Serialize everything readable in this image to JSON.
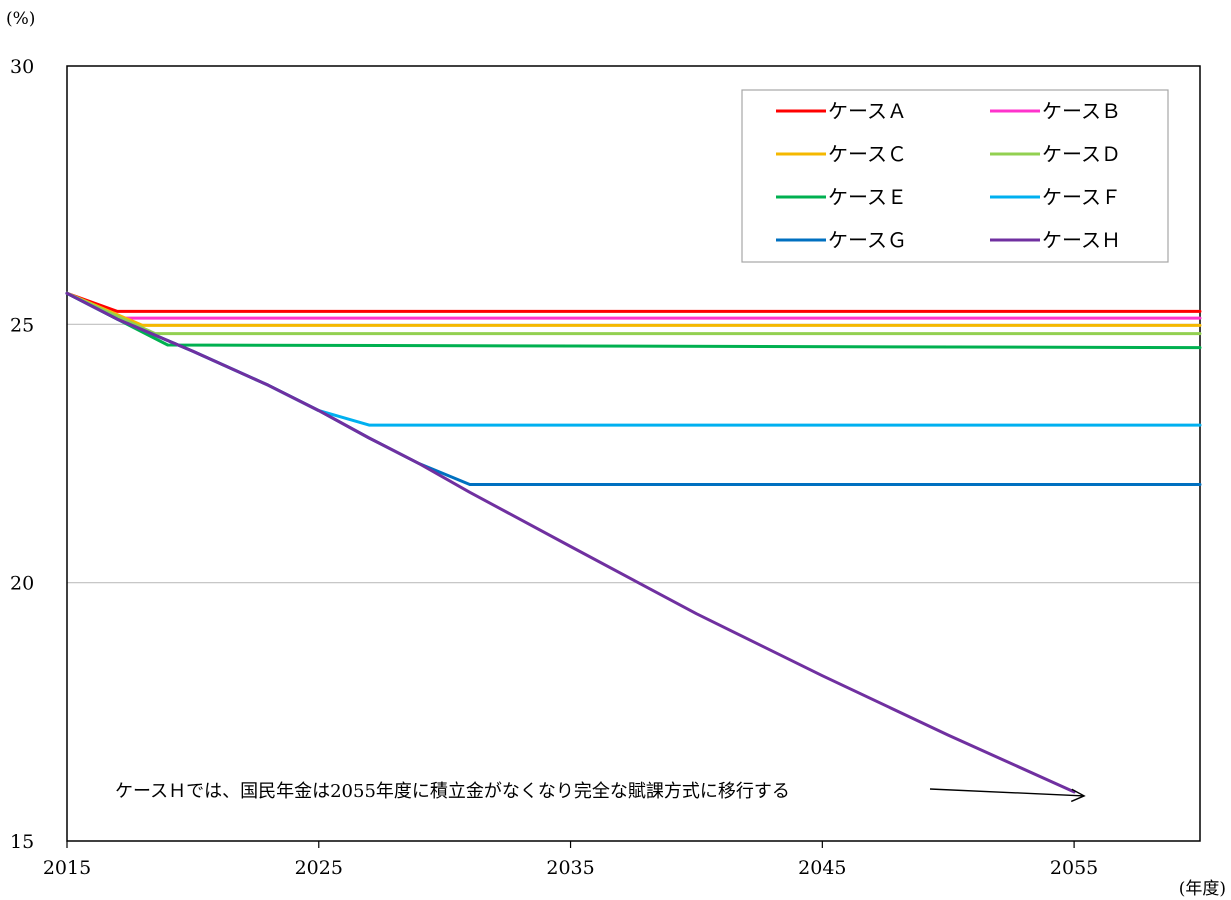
{
  "chart_data": {
    "type": "line",
    "ylabel": "(%)",
    "xlabel": "(年度)",
    "xlim": [
      2015,
      2060
    ],
    "ylim": [
      15,
      30
    ],
    "x_ticks": [
      2015,
      2025,
      2035,
      2045,
      2055
    ],
    "y_ticks": [
      15,
      20,
      25,
      30
    ],
    "grid": "horizontal",
    "legend_position": "top-right",
    "series": [
      {
        "name": "ケースＡ",
        "color": "#ff0000",
        "points": [
          [
            2015,
            25.6
          ],
          [
            2017,
            25.25
          ],
          [
            2060,
            25.25
          ]
        ]
      },
      {
        "name": "ケースＢ",
        "color": "#ff33cc",
        "points": [
          [
            2015,
            25.6
          ],
          [
            2017.3,
            25.12
          ],
          [
            2060,
            25.12
          ]
        ]
      },
      {
        "name": "ケースＣ",
        "color": "#f5b800",
        "points": [
          [
            2015,
            25.6
          ],
          [
            2018,
            24.98
          ],
          [
            2060,
            24.98
          ]
        ]
      },
      {
        "name": "ケースＤ",
        "color": "#92d050",
        "points": [
          [
            2015,
            25.6
          ],
          [
            2018.5,
            24.82
          ],
          [
            2060,
            24.82
          ]
        ]
      },
      {
        "name": "ケースＥ",
        "color": "#00b050",
        "points": [
          [
            2015,
            25.6
          ],
          [
            2016,
            25.35
          ],
          [
            2019,
            24.6
          ],
          [
            2060,
            24.55
          ]
        ]
      },
      {
        "name": "ケースＦ",
        "color": "#00b0f0",
        "points": [
          [
            2015,
            25.6
          ],
          [
            2017,
            25.1
          ],
          [
            2020,
            24.48
          ],
          [
            2023,
            23.82
          ],
          [
            2025,
            23.33
          ],
          [
            2027,
            23.05
          ],
          [
            2060,
            23.05
          ]
        ]
      },
      {
        "name": "ケースＧ",
        "color": "#0070c0",
        "points": [
          [
            2015,
            25.6
          ],
          [
            2017,
            25.1
          ],
          [
            2020,
            24.48
          ],
          [
            2023,
            23.82
          ],
          [
            2025,
            23.33
          ],
          [
            2027,
            22.8
          ],
          [
            2029,
            22.3
          ],
          [
            2031,
            21.9
          ],
          [
            2060,
            21.9
          ]
        ]
      },
      {
        "name": "ケースＨ",
        "color": "#7030a0",
        "points": [
          [
            2015,
            25.6
          ],
          [
            2017,
            25.1
          ],
          [
            2020,
            24.48
          ],
          [
            2023,
            23.82
          ],
          [
            2025,
            23.33
          ],
          [
            2027,
            22.8
          ],
          [
            2029,
            22.3
          ],
          [
            2031,
            21.75
          ],
          [
            2035,
            20.7
          ],
          [
            2040,
            19.4
          ],
          [
            2045,
            18.2
          ],
          [
            2050,
            17.05
          ],
          [
            2055,
            15.95
          ]
        ]
      }
    ],
    "annotation": {
      "text": "ケースＨでは、国民年金は2055年度に積立金がなくなり完全な賦課方式に移行する",
      "arrow_target": [
        2055,
        15.95
      ]
    }
  }
}
